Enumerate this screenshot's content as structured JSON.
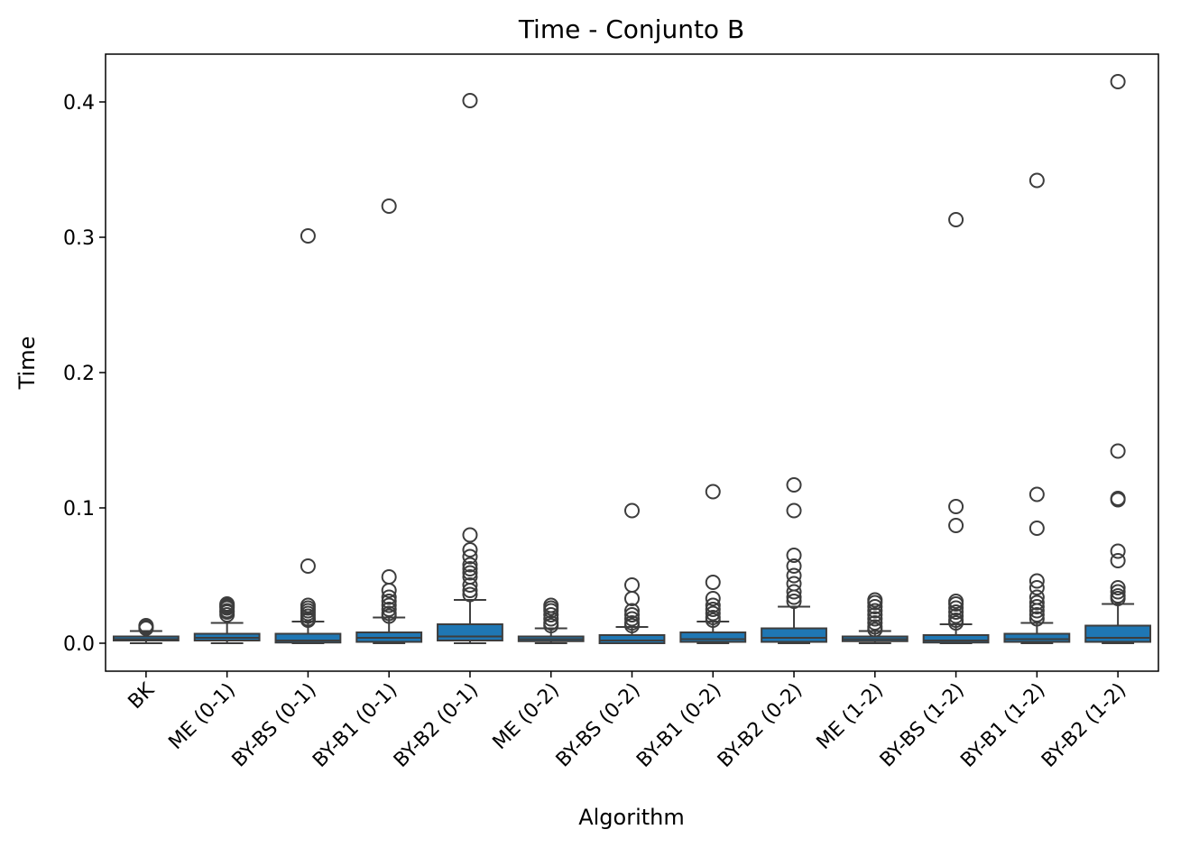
{
  "chart_data": {
    "type": "boxplot",
    "title": "Time - Conjunto B",
    "xlabel": "Algorithm",
    "ylabel": "Time",
    "ylim": [
      -0.021,
      0.435
    ],
    "yticks": [
      0.0,
      0.1,
      0.2,
      0.3,
      0.4
    ],
    "ytick_labels": [
      "0.0",
      "0.1",
      "0.2",
      "0.3",
      "0.4"
    ],
    "grid": false,
    "legend": "none",
    "box_color": "#1f77b4",
    "edge_color": "#3d3d3d",
    "categories": [
      "BK",
      "ME (0-1)",
      "BY-BS (0-1)",
      "BY-B1 (0-1)",
      "BY-B2 (0-1)",
      "ME (0-2)",
      "BY-BS (0-2)",
      "BY-B1 (0-2)",
      "BY-B2 (0-2)",
      "ME (1-2)",
      "BY-BS (1-2)",
      "BY-B1 (1-2)",
      "BY-B2 (1-2)"
    ],
    "boxes": [
      {
        "whislo": 0.0,
        "q1": 0.002,
        "med": 0.003,
        "q3": 0.005,
        "whishi": 0.009,
        "fliers": [
          0.011,
          0.012,
          0.013
        ]
      },
      {
        "whislo": 0.0,
        "q1": 0.002,
        "med": 0.004,
        "q3": 0.007,
        "whishi": 0.015,
        "fliers": [
          0.021,
          0.023,
          0.024,
          0.026,
          0.027,
          0.028,
          0.029
        ]
      },
      {
        "whislo": 0.0,
        "q1": 0.0005,
        "med": 0.002,
        "q3": 0.007,
        "whishi": 0.016,
        "fliers": [
          0.017,
          0.018,
          0.02,
          0.022,
          0.024,
          0.026,
          0.028,
          0.057,
          0.301
        ]
      },
      {
        "whislo": 0.0,
        "q1": 0.001,
        "med": 0.004,
        "q3": 0.008,
        "whishi": 0.019,
        "fliers": [
          0.02,
          0.022,
          0.025,
          0.028,
          0.031,
          0.034,
          0.039,
          0.049,
          0.323
        ]
      },
      {
        "whislo": 0.0,
        "q1": 0.002,
        "med": 0.005,
        "q3": 0.014,
        "whishi": 0.032,
        "fliers": [
          0.036,
          0.039,
          0.043,
          0.049,
          0.052,
          0.055,
          0.058,
          0.064,
          0.069,
          0.08,
          0.401
        ]
      },
      {
        "whislo": 0.0,
        "q1": 0.0015,
        "med": 0.003,
        "q3": 0.005,
        "whishi": 0.011,
        "fliers": [
          0.013,
          0.015,
          0.018,
          0.021,
          0.024,
          0.026,
          0.028
        ]
      },
      {
        "whislo": 0.0,
        "q1": 0.0,
        "med": 0.002,
        "q3": 0.006,
        "whishi": 0.012,
        "fliers": [
          0.013,
          0.015,
          0.018,
          0.021,
          0.024,
          0.033,
          0.043,
          0.098
        ]
      },
      {
        "whislo": 0.0,
        "q1": 0.001,
        "med": 0.003,
        "q3": 0.008,
        "whishi": 0.016,
        "fliers": [
          0.017,
          0.019,
          0.022,
          0.025,
          0.028,
          0.033,
          0.045,
          0.112
        ]
      },
      {
        "whislo": 0.0,
        "q1": 0.001,
        "med": 0.004,
        "q3": 0.011,
        "whishi": 0.027,
        "fliers": [
          0.031,
          0.034,
          0.038,
          0.044,
          0.05,
          0.057,
          0.065,
          0.098,
          0.117
        ]
      },
      {
        "whislo": 0.0,
        "q1": 0.0015,
        "med": 0.003,
        "q3": 0.005,
        "whishi": 0.009,
        "fliers": [
          0.01,
          0.012,
          0.015,
          0.018,
          0.021,
          0.024,
          0.027,
          0.03,
          0.032
        ]
      },
      {
        "whislo": 0.0,
        "q1": 0.0005,
        "med": 0.002,
        "q3": 0.006,
        "whishi": 0.014,
        "fliers": [
          0.015,
          0.017,
          0.02,
          0.023,
          0.026,
          0.029,
          0.031,
          0.087,
          0.101,
          0.313
        ]
      },
      {
        "whislo": 0.0,
        "q1": 0.001,
        "med": 0.003,
        "q3": 0.007,
        "whishi": 0.015,
        "fliers": [
          0.018,
          0.021,
          0.024,
          0.027,
          0.03,
          0.034,
          0.041,
          0.046,
          0.085,
          0.11,
          0.342
        ]
      },
      {
        "whislo": 0.0,
        "q1": 0.001,
        "med": 0.004,
        "q3": 0.013,
        "whishi": 0.029,
        "fliers": [
          0.033,
          0.035,
          0.038,
          0.041,
          0.061,
          0.068,
          0.106,
          0.107,
          0.142,
          0.415
        ]
      }
    ]
  }
}
